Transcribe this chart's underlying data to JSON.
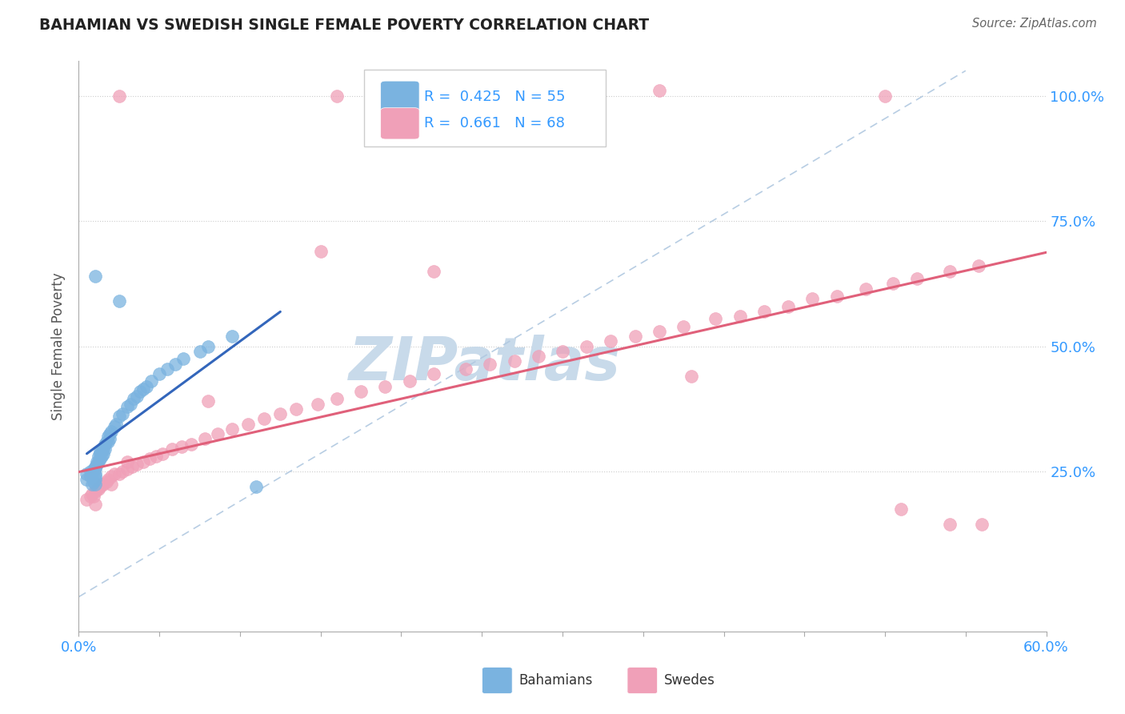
{
  "title": "BAHAMIAN VS SWEDISH SINGLE FEMALE POVERTY CORRELATION CHART",
  "source": "Source: ZipAtlas.com",
  "ylabel": "Single Female Poverty",
  "xlim": [
    0.0,
    0.6
  ],
  "ylim": [
    -0.07,
    1.07
  ],
  "bahamian_R": 0.425,
  "bahamian_N": 55,
  "swedish_R": 0.661,
  "swedish_N": 68,
  "bahamian_color": "#7ab3e0",
  "swedish_color": "#f0a0b8",
  "bahamian_line_color": "#3366bb",
  "swedish_line_color": "#e0607a",
  "diagonal_color": "#b0c8e0",
  "watermark": "ZIPatlas",
  "watermark_color": "#c8daea",
  "legend_text_color": "#3399ff",
  "ytick_positions": [
    0.25,
    0.5,
    0.75,
    1.0
  ],
  "ytick_labels": [
    "25.0%",
    "50.0%",
    "75.0%",
    "100.0%"
  ],
  "bah_x": [
    0.005,
    0.005,
    0.007,
    0.007,
    0.008,
    0.008,
    0.009,
    0.009,
    0.01,
    0.01,
    0.01,
    0.01,
    0.01,
    0.01,
    0.011,
    0.011,
    0.012,
    0.012,
    0.013,
    0.013,
    0.013,
    0.014,
    0.014,
    0.015,
    0.015,
    0.016,
    0.016,
    0.017,
    0.018,
    0.018,
    0.019,
    0.019,
    0.02,
    0.022,
    0.023,
    0.025,
    0.027,
    0.03,
    0.032,
    0.034,
    0.036,
    0.038,
    0.04,
    0.042,
    0.045,
    0.05,
    0.055,
    0.06,
    0.065,
    0.075,
    0.08,
    0.095,
    0.01,
    0.025,
    0.11
  ],
  "bah_y": [
    0.235,
    0.245,
    0.24,
    0.25,
    0.225,
    0.245,
    0.23,
    0.255,
    0.225,
    0.235,
    0.24,
    0.245,
    0.255,
    0.26,
    0.27,
    0.265,
    0.27,
    0.28,
    0.29,
    0.275,
    0.285,
    0.28,
    0.29,
    0.295,
    0.285,
    0.305,
    0.295,
    0.31,
    0.31,
    0.32,
    0.315,
    0.325,
    0.33,
    0.34,
    0.345,
    0.36,
    0.365,
    0.38,
    0.385,
    0.395,
    0.4,
    0.41,
    0.415,
    0.42,
    0.43,
    0.445,
    0.455,
    0.465,
    0.475,
    0.49,
    0.5,
    0.52,
    0.64,
    0.59,
    0.22
  ],
  "swe_x": [
    0.005,
    0.007,
    0.008,
    0.009,
    0.01,
    0.011,
    0.012,
    0.013,
    0.014,
    0.015,
    0.017,
    0.018,
    0.02,
    0.022,
    0.025,
    0.027,
    0.03,
    0.033,
    0.036,
    0.04,
    0.044,
    0.048,
    0.052,
    0.058,
    0.064,
    0.07,
    0.078,
    0.086,
    0.095,
    0.105,
    0.115,
    0.125,
    0.135,
    0.148,
    0.16,
    0.175,
    0.19,
    0.205,
    0.22,
    0.24,
    0.255,
    0.27,
    0.285,
    0.3,
    0.315,
    0.33,
    0.345,
    0.36,
    0.375,
    0.395,
    0.41,
    0.425,
    0.44,
    0.455,
    0.47,
    0.488,
    0.505,
    0.52,
    0.54,
    0.558,
    0.01,
    0.02,
    0.03,
    0.08,
    0.15,
    0.22,
    0.38,
    0.51
  ],
  "swe_y": [
    0.195,
    0.2,
    0.205,
    0.2,
    0.21,
    0.215,
    0.215,
    0.22,
    0.225,
    0.225,
    0.23,
    0.235,
    0.24,
    0.245,
    0.245,
    0.25,
    0.255,
    0.26,
    0.265,
    0.27,
    0.275,
    0.28,
    0.285,
    0.295,
    0.3,
    0.305,
    0.315,
    0.325,
    0.335,
    0.345,
    0.355,
    0.365,
    0.375,
    0.385,
    0.395,
    0.41,
    0.42,
    0.43,
    0.445,
    0.455,
    0.465,
    0.47,
    0.48,
    0.49,
    0.5,
    0.51,
    0.52,
    0.53,
    0.54,
    0.555,
    0.56,
    0.57,
    0.58,
    0.595,
    0.6,
    0.615,
    0.625,
    0.635,
    0.65,
    0.66,
    0.185,
    0.225,
    0.27,
    0.39,
    0.69,
    0.65,
    0.44,
    0.175
  ],
  "swe_outliers_x": [
    0.025,
    0.16,
    0.36,
    0.5,
    0.54,
    0.56
  ],
  "swe_outliers_y": [
    1.0,
    1.0,
    1.01,
    1.0,
    0.145,
    0.145
  ]
}
